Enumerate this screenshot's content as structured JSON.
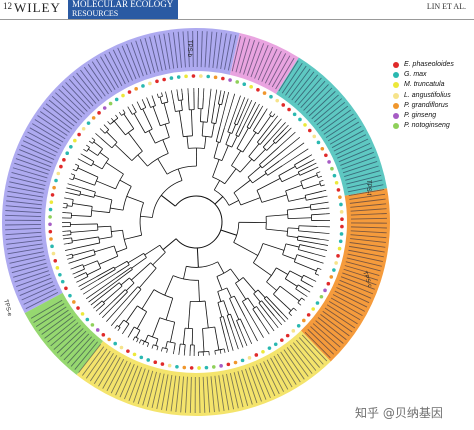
{
  "header": {
    "page_number": "12",
    "publisher": "WILEY",
    "journal_line1": "MOLECULAR ECOLOGY",
    "journal_line2": "RESOURCES",
    "running_head": "LIN ET AL."
  },
  "figure": {
    "clade_labels": [
      "TPS-b",
      "TPS-f",
      "TPS-c",
      "TPS-e"
    ],
    "legend": [
      {
        "species": "E. phaseoloides",
        "color": "#e02a2a"
      },
      {
        "species": "G. max",
        "color": "#2ab8b0"
      },
      {
        "species": "M. truncatula",
        "color": "#ece83a"
      },
      {
        "species": "L. angustifolius",
        "color": "#f6e38b"
      },
      {
        "species": "P. grandiflorus",
        "color": "#f0962c"
      },
      {
        "species": "P. ginseng",
        "color": "#a65cc4"
      },
      {
        "species": "P. notoginseng",
        "color": "#8fd05a"
      }
    ],
    "clade_colors": {
      "tps_b": "#aeaaf0",
      "tps_b_pink": "#e9a4e0",
      "tps_f": "#5ec8c2",
      "tps_c": "#f59b3c",
      "tps_g": "#f4e46c",
      "tps_e": "#96d870"
    }
  },
  "watermark": "知乎 @贝纳基因"
}
